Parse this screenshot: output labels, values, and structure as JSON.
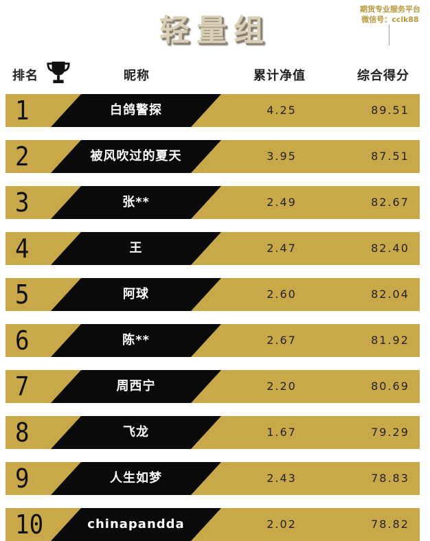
{
  "title": "轻量组",
  "watermark": {
    "line1": "期货专业服务平台",
    "line2": "微信号：cclk88"
  },
  "headers": {
    "rank": "排名",
    "nickname": "昵称",
    "nav": "累计净值",
    "score": "综合得分"
  },
  "icons": {
    "trophy": "trophy-icon"
  },
  "colors": {
    "row_bg": "#c9a84a",
    "band": "#0a0a0a",
    "title": "#d9cfb6"
  },
  "rows": [
    {
      "rank": "1",
      "nickname": "白鸽警探",
      "nav": "4.25",
      "score": "89.51"
    },
    {
      "rank": "2",
      "nickname": "被风吹过的夏天",
      "nav": "3.95",
      "score": "87.51"
    },
    {
      "rank": "3",
      "nickname": "张**",
      "nav": "2.49",
      "score": "82.67"
    },
    {
      "rank": "4",
      "nickname": "王",
      "nav": "2.47",
      "score": "82.40"
    },
    {
      "rank": "5",
      "nickname": "阿球",
      "nav": "2.60",
      "score": "82.04"
    },
    {
      "rank": "6",
      "nickname": "陈**",
      "nav": "2.67",
      "score": "81.92"
    },
    {
      "rank": "7",
      "nickname": "周西宁",
      "nav": "2.20",
      "score": "80.69"
    },
    {
      "rank": "8",
      "nickname": "飞龙",
      "nav": "1.67",
      "score": "79.29"
    },
    {
      "rank": "9",
      "nickname": "人生如梦",
      "nav": "2.43",
      "score": "78.83"
    },
    {
      "rank": "10",
      "nickname": "chinapandda",
      "nav": "2.02",
      "score": "78.82"
    }
  ]
}
